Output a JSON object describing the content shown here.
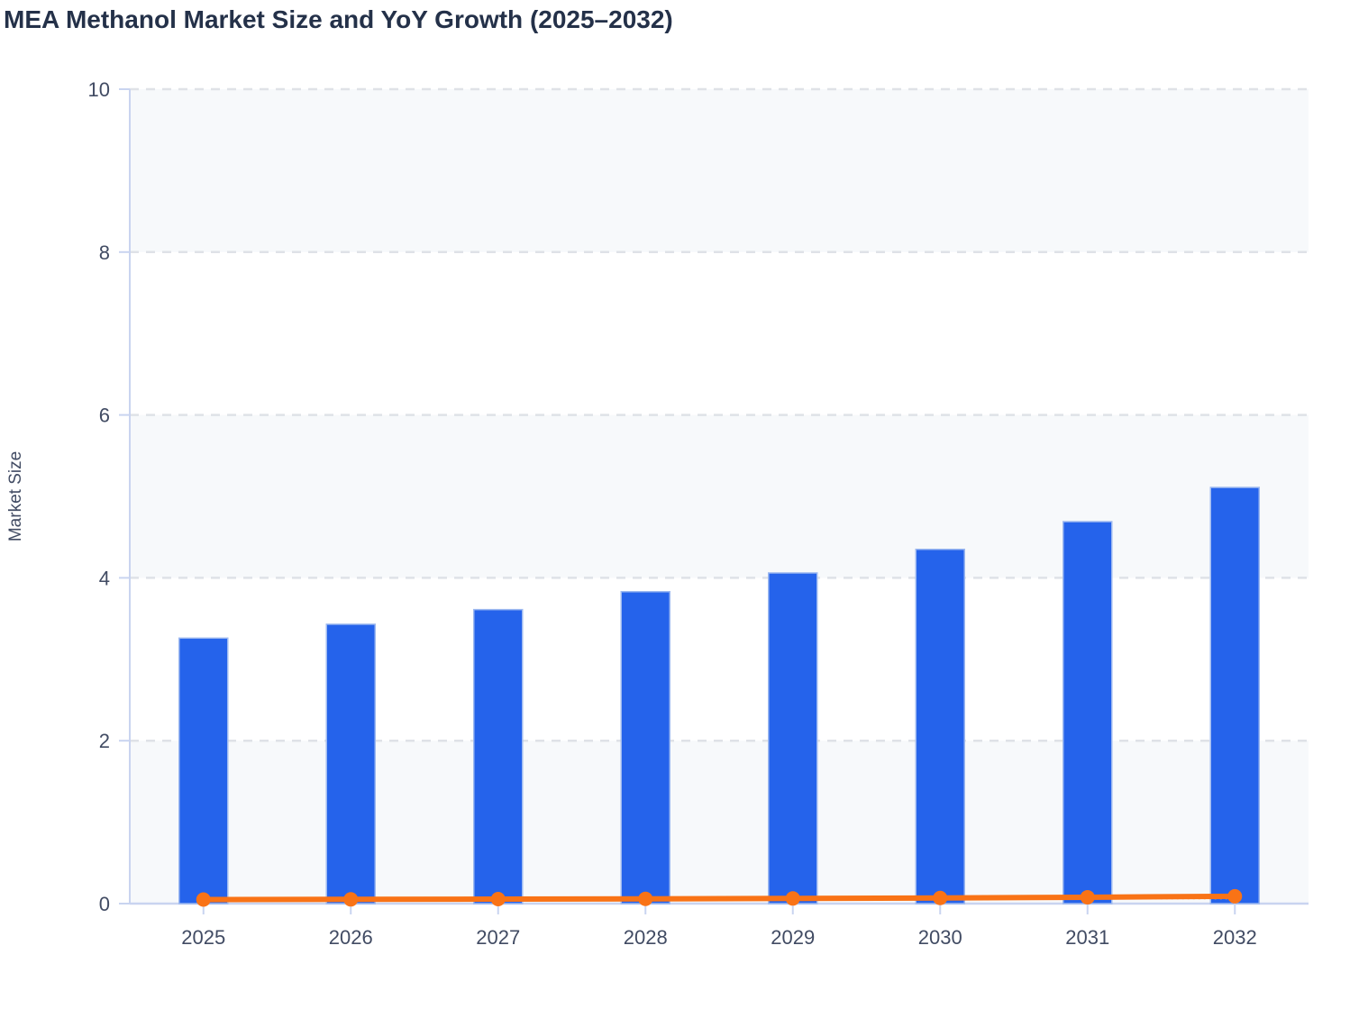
{
  "title": "MEA Methanol Market Size and YoY Growth (2025–2032)",
  "chart_data": {
    "type": "bar",
    "subtype": "bar+line combo, single shared y-axis",
    "title": "MEA Methanol Market Size and YoY Growth (2025–2032)",
    "categories": [
      "2025",
      "2026",
      "2027",
      "2028",
      "2029",
      "2030",
      "2031",
      "2032"
    ],
    "series": [
      {
        "name": "Market Size",
        "type": "bar",
        "color": "#2563eb",
        "values": [
          3.26,
          3.43,
          3.61,
          3.83,
          4.06,
          4.35,
          4.69,
          5.11
        ]
      },
      {
        "name": "YoY Growth",
        "type": "line",
        "color": "#f97316",
        "values": [
          0.05,
          0.052,
          0.055,
          0.058,
          0.063,
          0.069,
          0.078,
          0.09
        ]
      }
    ],
    "overlay_dotted_line": {
      "style": "dotted",
      "color": "#fcaa5e",
      "approx_value": 0.066
    },
    "xlabel": "",
    "ylabel": "Market Size",
    "ylim": [
      0,
      10
    ],
    "yticks": [
      0,
      2,
      4,
      6,
      8,
      10
    ],
    "grid": "horizontal dashed at each y tick",
    "legend": "none",
    "plot_bands": {
      "fill": "#f7f9fb",
      "ranges": [
        [
          0,
          2
        ],
        [
          4,
          6
        ],
        [
          8,
          10
        ]
      ]
    }
  },
  "colors": {
    "bar_fill": "#2563eb",
    "bar_stroke": "#9db9f0",
    "line": "#f97316",
    "axis": "#c9d4f0",
    "grid": "#dfe2e7",
    "band": "#f7f9fb",
    "title_text": "#243149",
    "tick_text": "#414b63",
    "background": "#ffffff"
  }
}
